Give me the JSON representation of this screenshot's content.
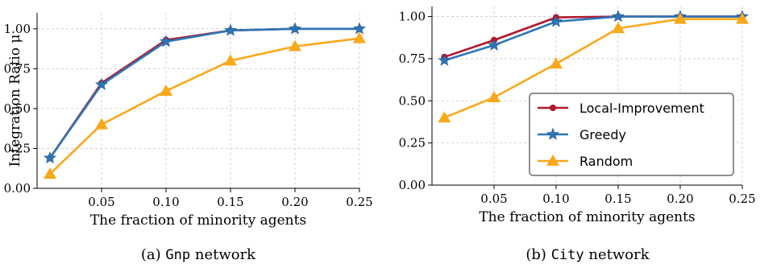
{
  "chart_data": [
    {
      "type": "line",
      "caption_prefix": "(a) ",
      "caption_code": "Gnp",
      "caption_suffix": " network",
      "xlabel": "The fraction of minority agents",
      "ylabel": "Integration Ratio μ",
      "xlim": [
        0.0,
        0.25
      ],
      "ylim": [
        0.0,
        1.1
      ],
      "xticks": [
        0.05,
        0.1,
        0.15,
        0.2,
        0.25
      ],
      "xtick_labels": [
        "0.05",
        "0.10",
        "0.15",
        "0.20",
        "0.25"
      ],
      "yticks": [
        0.0,
        0.25,
        0.5,
        0.75,
        1.0
      ],
      "ytick_labels": [
        "0.00",
        "0.25",
        "0.50",
        "0.75",
        "1.00"
      ],
      "grid": true,
      "x": [
        0.01,
        0.05,
        0.1,
        0.15,
        0.2,
        0.25
      ],
      "series": [
        {
          "name": "Local-Improvement",
          "color": "#b2182b",
          "marker": "circle",
          "values": [
            0.19,
            0.66,
            0.93,
            0.99,
            1.0,
            1.0
          ]
        },
        {
          "name": "Greedy",
          "color": "#2e75b6",
          "marker": "star",
          "values": [
            0.19,
            0.65,
            0.92,
            0.99,
            1.0,
            1.0
          ]
        },
        {
          "name": "Random",
          "color": "#f9a81b",
          "marker": "triangle",
          "values": [
            0.09,
            0.4,
            0.61,
            0.8,
            0.89,
            0.94
          ]
        }
      ]
    },
    {
      "type": "line",
      "caption_prefix": "(b) ",
      "caption_code": "City",
      "caption_suffix": " network",
      "xlabel": "The fraction of minority agents",
      "ylabel": "",
      "xlim": [
        0.0,
        0.25
      ],
      "ylim": [
        0.0,
        1.06
      ],
      "xticks": [
        0.05,
        0.1,
        0.15,
        0.2,
        0.25
      ],
      "xtick_labels": [
        "0.05",
        "0.10",
        "0.15",
        "0.20",
        "0.25"
      ],
      "yticks": [
        0.0,
        0.25,
        0.5,
        0.75,
        1.0
      ],
      "ytick_labels": [
        "0.00",
        "0.25",
        "0.50",
        "0.75",
        "1.00"
      ],
      "grid": true,
      "legend_position": "lower-right",
      "x": [
        0.01,
        0.05,
        0.1,
        0.15,
        0.2,
        0.25
      ],
      "series": [
        {
          "name": "Local-Improvement",
          "color": "#b2182b",
          "marker": "circle",
          "values": [
            0.76,
            0.86,
            0.995,
            1.0,
            1.0,
            1.0
          ]
        },
        {
          "name": "Greedy",
          "color": "#2e75b6",
          "marker": "star",
          "values": [
            0.74,
            0.83,
            0.97,
            1.0,
            1.0,
            1.0
          ]
        },
        {
          "name": "Random",
          "color": "#f9a81b",
          "marker": "triangle",
          "values": [
            0.4,
            0.52,
            0.72,
            0.93,
            0.985,
            0.985
          ]
        }
      ]
    }
  ]
}
